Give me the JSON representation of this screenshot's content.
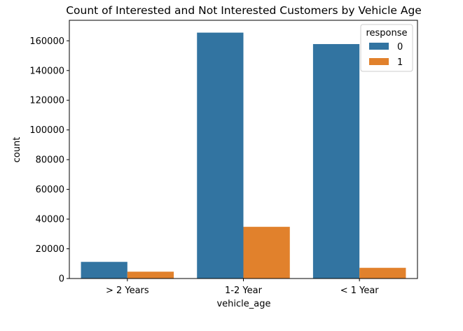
{
  "chart_data": {
    "type": "bar",
    "title": "Count of Interested and Not Interested Customers by Vehicle Age",
    "xlabel": "vehicle_age",
    "ylabel": "count",
    "categories": [
      "> 2 Years",
      "1-2 Year",
      "< 1 Year"
    ],
    "series": [
      {
        "name": "0",
        "color": "#3274a1",
        "values": [
          11200,
          165500,
          157800
        ]
      },
      {
        "name": "1",
        "color": "#e1812c",
        "values": [
          4600,
          34800,
          7200
        ]
      }
    ],
    "ylim": [
      0,
      173800
    ],
    "yticks": [
      0,
      20000,
      40000,
      60000,
      80000,
      100000,
      120000,
      140000,
      160000
    ],
    "grid": false,
    "legend": {
      "title": "response",
      "placement": "top-right"
    }
  }
}
